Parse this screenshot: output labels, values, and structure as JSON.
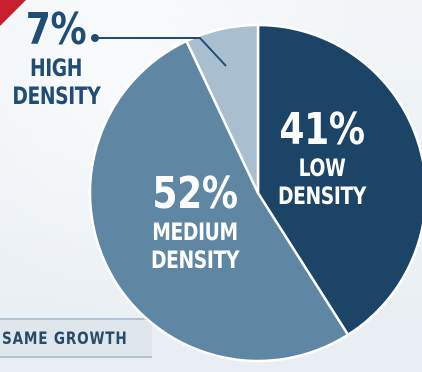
{
  "chart_data": {
    "type": "pie",
    "slices": [
      {
        "label_line1": "LOW",
        "label_line2": "DENSITY",
        "value": 41,
        "pct_text": "41%",
        "color": "#1c4466"
      },
      {
        "label_line1": "MEDIUM",
        "label_line2": "DENSITY",
        "value": 52,
        "pct_text": "52%",
        "color": "#5f87a3"
      },
      {
        "label_line1": "HIGH",
        "label_line2": "DENSITY",
        "value": 7,
        "pct_text": "7%",
        "color": "#a9bfcf"
      }
    ]
  },
  "footer_tag": {
    "text": "SAME GROWTH"
  },
  "colors": {
    "accent": "#c8202f",
    "callout": "#1f4d75"
  }
}
